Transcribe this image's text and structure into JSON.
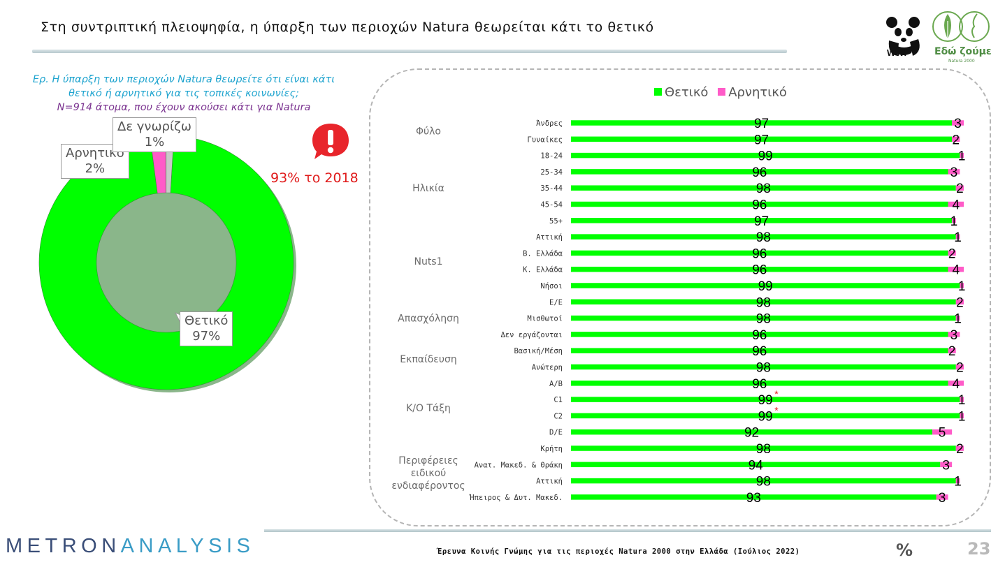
{
  "header": {
    "title": "Στη συντριπτική πλειοψηφία, η ύπαρξη των περιοχών Natura θεωρείται κάτι το θετικό"
  },
  "logos": {
    "wwf": "WWF",
    "edo_title": "Εδώ ζούμε",
    "edo_subtitle": "Natura 2000"
  },
  "question": {
    "line1": "Ερ. Η ύπαρξη των περιοχών Natura θεωρείτε ότι είναι κάτι",
    "line2": "θετικό ή αρνητικό για τις τοπικές κοινωνίες;",
    "line3": "N=914 άτομα, που έχουν ακούσει κάτι για Natura"
  },
  "note_2018": "93% το 2018",
  "colors": {
    "positive": "#00ff00",
    "negative": "#ff5bc8",
    "dont_know": "#c9c9c9",
    "alert": "#e8252b"
  },
  "chart_data": [
    {
      "type": "pie",
      "subtype": "donut",
      "slices": [
        {
          "label": "Θετικό",
          "value": 97,
          "display": "97%"
        },
        {
          "label": "Αρνητικό",
          "value": 2,
          "display": "2%"
        },
        {
          "label": "Δε γνωρίζω",
          "value": 1,
          "display": "1%"
        }
      ]
    },
    {
      "type": "bar",
      "orientation": "horizontal",
      "stacked": true,
      "legend": "top",
      "series_names": [
        "Θετικό",
        "Αρνητικό"
      ],
      "groups": [
        {
          "name": "Φύλο",
          "rows": [
            {
              "label": "Άνδρες",
              "pos": 97,
              "neg": 3
            },
            {
              "label": "Γυναίκες",
              "pos": 97,
              "neg": 2
            }
          ]
        },
        {
          "name": "Ηλικία",
          "rows": [
            {
              "label": "18-24",
              "pos": 99,
              "neg": 1
            },
            {
              "label": "25-34",
              "pos": 96,
              "neg": 3
            },
            {
              "label": "35-44",
              "pos": 98,
              "neg": 2
            },
            {
              "label": "45-54",
              "pos": 96,
              "neg": 4
            },
            {
              "label": "55+",
              "pos": 97,
              "neg": 1
            }
          ]
        },
        {
          "name": "Nuts1",
          "rows": [
            {
              "label": "Αττική",
              "pos": 98,
              "neg": 1
            },
            {
              "label": "Β. Ελλάδα",
              "pos": 96,
              "neg": 2
            },
            {
              "label": "Κ. Ελλάδα",
              "pos": 96,
              "neg": 4
            },
            {
              "label": "Νήσοι",
              "pos": 99,
              "neg": 1
            }
          ]
        },
        {
          "name": "Απασχόληση",
          "rows": [
            {
              "label": "Ε/Ε",
              "pos": 98,
              "neg": 2
            },
            {
              "label": "Μισθωτοί",
              "pos": 98,
              "neg": 1
            },
            {
              "label": "Δεν εργάζονται",
              "pos": 96,
              "neg": 3
            }
          ]
        },
        {
          "name": "Εκπαίδευση",
          "rows": [
            {
              "label": "Βασική/Μέση",
              "pos": 96,
              "neg": 2
            },
            {
              "label": "Ανώτερη",
              "pos": 98,
              "neg": 2
            }
          ]
        },
        {
          "name": "Κ/Ο Τάξη",
          "rows": [
            {
              "label": "Α/Β",
              "pos": 96,
              "neg": 4
            },
            {
              "label": "C1",
              "pos": 99,
              "neg": 1,
              "star": "*"
            },
            {
              "label": "C2",
              "pos": 99,
              "neg": 1,
              "star": "*"
            },
            {
              "label": "D/E",
              "pos": 92,
              "neg": 5
            }
          ]
        },
        {
          "name": "Περιφέρειες\nειδικού\nενδιαφέροντος",
          "rows": [
            {
              "label": "Κρήτη",
              "pos": 98,
              "neg": 2
            },
            {
              "label": "Ανατ. Μακεδ. & Θράκη",
              "pos": 94,
              "neg": 3
            },
            {
              "label": "Αττική",
              "pos": 98,
              "neg": 1
            },
            {
              "label": "Ήπειρος & Δυτ. Μακεδ.",
              "pos": 93,
              "neg": 3
            }
          ]
        }
      ]
    }
  ],
  "footer": {
    "brand_part1": "METRON",
    "brand_part2": "ANALYSIS",
    "survey": "Έρευνα Κοινής Γνώμης για τις περιοχές Natura 2000 στην Ελλάδα (Ιούλιος 2022)",
    "mark": "%",
    "page": "23"
  }
}
